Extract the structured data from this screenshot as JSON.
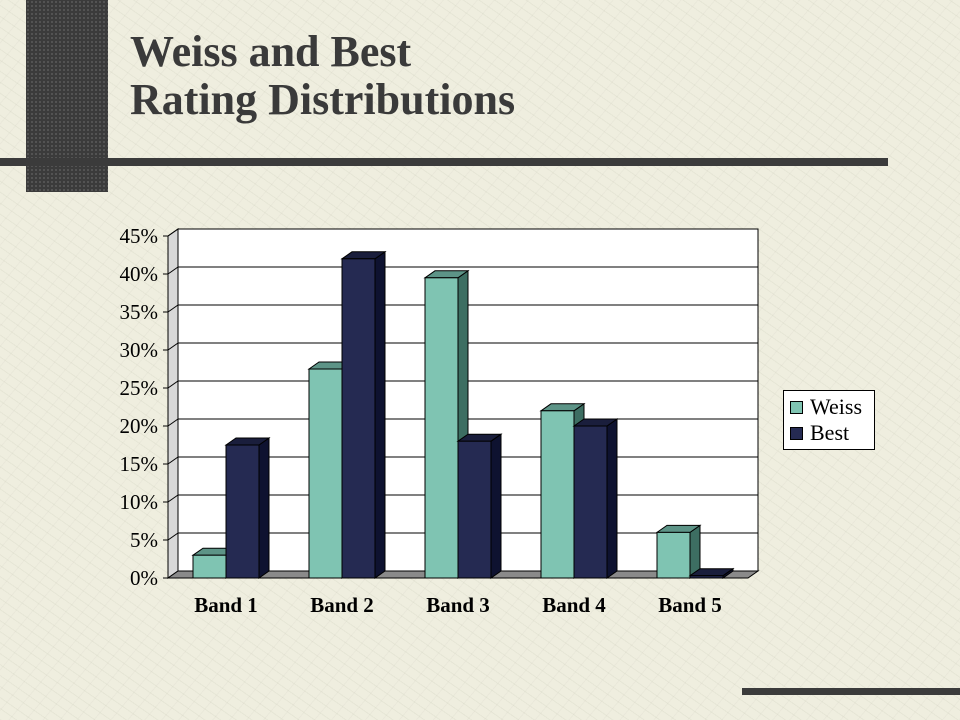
{
  "slide": {
    "title_line1": "Weiss and Best",
    "title_line2": "Rating Distributions"
  },
  "colors": {
    "weiss": "#7fc4b2",
    "best": "#252a52",
    "floor": "#8a8a8a",
    "plot_bg": "#ffffff"
  },
  "chart_data": {
    "type": "bar",
    "title": "",
    "xlabel": "",
    "ylabel": "",
    "categories": [
      "Band 1",
      "Band 2",
      "Band 3",
      "Band 4",
      "Band 5"
    ],
    "series": [
      {
        "name": "Weiss",
        "values": [
          3,
          27.5,
          39.5,
          22,
          6
        ]
      },
      {
        "name": "Best",
        "values": [
          17.5,
          42,
          18,
          20,
          0.3
        ]
      }
    ],
    "ylim": [
      0,
      45
    ],
    "y_ticks": [
      "0%",
      "5%",
      "10%",
      "15%",
      "20%",
      "25%",
      "30%",
      "35%",
      "40%",
      "45%"
    ],
    "grid": true,
    "legend": "right",
    "style": "3d-clustered-column"
  }
}
